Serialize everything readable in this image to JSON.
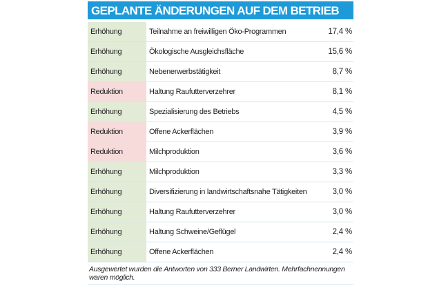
{
  "title": "GEPLANTE ÄNDERUNGEN AUF DEM BETRIEB",
  "colors": {
    "header_bg": "#1e9ad8",
    "increase_bg": "#e2ebd5",
    "reduction_bg": "#f7dada",
    "divider": "#d2e6f0"
  },
  "rows": [
    {
      "type": "Erhöhung",
      "kind": "up",
      "label": "Teilnahme an freiwilligen Öko-Programmen",
      "value": "17,4 %"
    },
    {
      "type": "Erhöhung",
      "kind": "up",
      "label": "Ökologische Ausgleichsfläche",
      "value": "15,6 %"
    },
    {
      "type": "Erhöhung",
      "kind": "up",
      "label": "Nebenerwerbstätigkeit",
      "value": "8,7 %"
    },
    {
      "type": "Reduktion",
      "kind": "down",
      "label": "Haltung Raufutterverzehrer",
      "value": "8,1 %"
    },
    {
      "type": "Erhöhung",
      "kind": "up",
      "label": "Spezialisierung des Betriebs",
      "value": "4,5 %"
    },
    {
      "type": "Reduktion",
      "kind": "down",
      "label": "Offene Ackerflächen",
      "value": "3,9 %"
    },
    {
      "type": "Reduktion",
      "kind": "down",
      "label": "Milchproduktion",
      "value": "3,6 %"
    },
    {
      "type": "Erhöhung",
      "kind": "up",
      "label": "Milchproduktion",
      "value": "3,3 %"
    },
    {
      "type": "Erhöhung",
      "kind": "up",
      "label": "Diversifizierung in landwirtschaftsnahe Tätigkeiten",
      "value": "3,0 %"
    },
    {
      "type": "Erhöhung",
      "kind": "up",
      "label": "Haltung Raufutterverzehrer",
      "value": "3,0 %"
    },
    {
      "type": "Erhöhung",
      "kind": "up",
      "label": "Haltung Schweine/Geflügel",
      "value": "2,4 %"
    },
    {
      "type": "Erhöhung",
      "kind": "up",
      "label": "Offene Ackerflächen",
      "value": "2,4 %"
    }
  ],
  "footnote": "Ausgewertet wurden die Antworten von 333 Berner Landwirten. Mehrfachnennungen waren möglich."
}
